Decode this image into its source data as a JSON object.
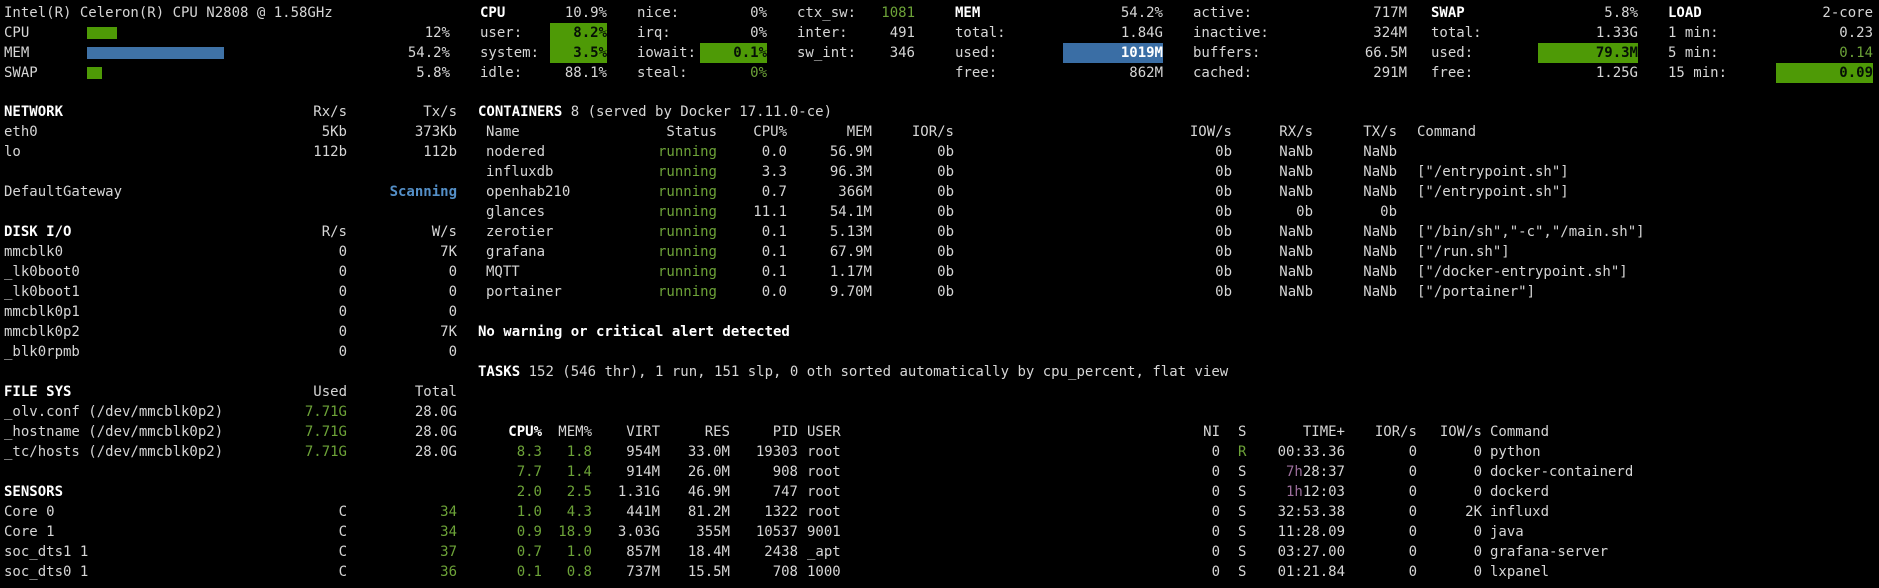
{
  "colors": {
    "background": "#000000",
    "text": "#d6d6d6",
    "title_white": "#ffffff",
    "green_fg": "#6da338",
    "green_bg": "#4e9a06",
    "blue_bg": "#3a6ea5",
    "blue_fg": "#548fc7",
    "magenta_fg": "#9d6f9d",
    "bar_green": "#4e9a06",
    "bar_blue": "#3f72a6"
  },
  "quicklook": {
    "title": "Intel(R) Celeron(R) CPU N2808 @ 1.58GHz",
    "gauges": [
      {
        "label": "CPU",
        "value": "12%",
        "percent": 12,
        "color": "green"
      },
      {
        "label": "MEM",
        "value": "54.2%",
        "percent": 54.2,
        "color": "blue"
      },
      {
        "label": "SWAP",
        "value": "5.8%",
        "percent": 5.8,
        "color": "green"
      }
    ]
  },
  "cpu_panel": {
    "col1": [
      {
        "label": "CPU",
        "value": "10.9%",
        "title": true
      },
      {
        "label": "user:",
        "value": "8.2%",
        "style": "bg-green"
      },
      {
        "label": "system:",
        "value": "3.5%",
        "style": "bg-green"
      },
      {
        "label": "idle:",
        "value": "88.1%"
      }
    ],
    "col2": [
      {
        "label": "nice:",
        "value": "0%"
      },
      {
        "label": "irq:",
        "value": "0%"
      },
      {
        "label": "iowait:",
        "value": "0.1%",
        "style": "bg-green"
      },
      {
        "label": "steal:",
        "value": "0%",
        "style": "fg-green"
      }
    ],
    "col3": [
      {
        "label": "ctx_sw:",
        "value": "1081",
        "style": "fg-green"
      },
      {
        "label": "inter:",
        "value": "491"
      },
      {
        "label": "sw_int:",
        "value": "346"
      }
    ]
  },
  "mem_panel": {
    "col1": [
      {
        "label": "MEM",
        "value": "54.2%",
        "title": true
      },
      {
        "label": "total:",
        "value": "1.84G"
      },
      {
        "label": "used:",
        "value": "1019M",
        "style": "bg-blue"
      },
      {
        "label": "free:",
        "value": "862M"
      }
    ],
    "col2": [
      {
        "label": "active:",
        "value": "717M"
      },
      {
        "label": "inactive:",
        "value": "324M"
      },
      {
        "label": "buffers:",
        "value": "66.5M"
      },
      {
        "label": "cached:",
        "value": "291M"
      }
    ]
  },
  "swap_panel": {
    "col1": [
      {
        "label": "SWAP",
        "value": "5.8%",
        "title": true
      },
      {
        "label": "total:",
        "value": "1.33G"
      },
      {
        "label": "used:",
        "value": "79.3M",
        "style": "bg-green"
      },
      {
        "label": "free:",
        "value": "1.25G"
      }
    ]
  },
  "load_panel": {
    "col1": [
      {
        "label": "LOAD",
        "value": "2-core",
        "title": true
      },
      {
        "label": "1 min:",
        "value": "0.23"
      },
      {
        "label": "5 min:",
        "value": "0.14",
        "style": "fg-green"
      },
      {
        "label": "15 min:",
        "value": "0.09",
        "style": "bg-green"
      }
    ]
  },
  "network": {
    "title": "NETWORK",
    "headers": [
      "Rx/s",
      "Tx/s"
    ],
    "rows": [
      [
        "eth0",
        "5Kb",
        "373Kb"
      ],
      [
        "lo",
        "112b",
        "112b"
      ]
    ]
  },
  "gateway": {
    "label": "DefaultGateway",
    "status": "Scanning"
  },
  "diskio": {
    "title": "DISK I/O",
    "headers": [
      "R/s",
      "W/s"
    ],
    "rows": [
      [
        "mmcblk0",
        "0",
        "7K"
      ],
      [
        "_lk0boot0",
        "0",
        "0"
      ],
      [
        "_lk0boot1",
        "0",
        "0"
      ],
      [
        "mmcblk0p1",
        "0",
        "0"
      ],
      [
        "mmcblk0p2",
        "0",
        "7K"
      ],
      [
        "_blk0rpmb",
        "0",
        "0"
      ]
    ]
  },
  "filesys": {
    "title": "FILE SYS",
    "headers": [
      "Used",
      "Total"
    ],
    "rows": [
      [
        "_olv.conf (/dev/mmcblk0p2)",
        "7.71G",
        "28.0G"
      ],
      [
        "_hostname (/dev/mmcblk0p2)",
        "7.71G",
        "28.0G"
      ],
      [
        "_tc/hosts (/dev/mmcblk0p2)",
        "7.71G",
        "28.0G"
      ]
    ]
  },
  "sensors": {
    "title": "SENSORS",
    "rows": [
      [
        "Core 0",
        "C",
        "34"
      ],
      [
        "Core 1",
        "C",
        "34"
      ],
      [
        "soc_dts1 1",
        "C",
        "37"
      ],
      [
        "soc_dts0 1",
        "C",
        "36"
      ]
    ]
  },
  "containers": {
    "title": "CONTAINERS",
    "subtitle": "8 (served by Docker 17.11.0-ce)",
    "headers": [
      "Name",
      "Status",
      "CPU%",
      "MEM",
      "IOR/s",
      "IOW/s",
      "RX/s",
      "TX/s",
      "Command"
    ],
    "rows": [
      {
        "name": "nodered",
        "status": "running",
        "cpu": "0.0",
        "mem": "56.9M",
        "ior": "0b",
        "iow": "0b",
        "rx": "NaNb",
        "tx": "NaNb",
        "cmd": ""
      },
      {
        "name": "influxdb",
        "status": "running",
        "cpu": "3.3",
        "mem": "96.3M",
        "ior": "0b",
        "iow": "0b",
        "rx": "NaNb",
        "tx": "NaNb",
        "cmd": "[\"/entrypoint.sh\"]"
      },
      {
        "name": "openhab210",
        "status": "running",
        "cpu": "0.7",
        "mem": "366M",
        "ior": "0b",
        "iow": "0b",
        "rx": "NaNb",
        "tx": "NaNb",
        "cmd": "[\"/entrypoint.sh\"]"
      },
      {
        "name": "glances",
        "status": "running",
        "cpu": "11.1",
        "mem": "54.1M",
        "ior": "0b",
        "iow": "0b",
        "rx": "0b",
        "tx": "0b",
        "cmd": ""
      },
      {
        "name": "zerotier",
        "status": "running",
        "cpu": "0.1",
        "mem": "5.13M",
        "ior": "0b",
        "iow": "0b",
        "rx": "NaNb",
        "tx": "NaNb",
        "cmd": "[\"/bin/sh\",\"-c\",\"/main.sh\"]"
      },
      {
        "name": "grafana",
        "status": "running",
        "cpu": "0.1",
        "mem": "67.9M",
        "ior": "0b",
        "iow": "0b",
        "rx": "NaNb",
        "tx": "NaNb",
        "cmd": "[\"/run.sh\"]"
      },
      {
        "name": "MQTT",
        "status": "running",
        "cpu": "0.1",
        "mem": "1.17M",
        "ior": "0b",
        "iow": "0b",
        "rx": "NaNb",
        "tx": "NaNb",
        "cmd": "[\"/docker-entrypoint.sh\"]"
      },
      {
        "name": "portainer",
        "status": "running",
        "cpu": "0.0",
        "mem": "9.70M",
        "ior": "0b",
        "iow": "0b",
        "rx": "NaNb",
        "tx": "NaNb",
        "cmd": "[\"/portainer\"]"
      }
    ]
  },
  "alert": {
    "text": "No warning or critical alert detected"
  },
  "tasks": {
    "title": "TASKS",
    "summary": "152 (546 thr), 1 run, 151 slp, 0 oth",
    "sort_info": "sorted automatically by cpu_percent, flat view",
    "headers": [
      "CPU%",
      "MEM%",
      "VIRT",
      "RES",
      "PID",
      "USER",
      "NI",
      "S",
      "TIME+",
      "IOR/s",
      "IOW/s",
      "Command"
    ],
    "rows": [
      {
        "cpu": "8.3",
        "mem": "1.8",
        "virt": "954M",
        "res": "33.0M",
        "pid": "19303",
        "user": "root",
        "ni": "0",
        "s": "R",
        "tprefix": "",
        "time": "00:33.36",
        "ior": "0",
        "iow": "0",
        "cmd": "python"
      },
      {
        "cpu": "7.7",
        "mem": "1.4",
        "virt": "914M",
        "res": "26.0M",
        "pid": "908",
        "user": "root",
        "ni": "0",
        "s": "S",
        "tprefix": "7h",
        "time": "28:37",
        "ior": "0",
        "iow": "0",
        "cmd": "docker-containerd"
      },
      {
        "cpu": "2.0",
        "mem": "2.5",
        "virt": "1.31G",
        "res": "46.9M",
        "pid": "747",
        "user": "root",
        "ni": "0",
        "s": "S",
        "tprefix": "1h",
        "time": "12:03",
        "ior": "0",
        "iow": "0",
        "cmd": "dockerd"
      },
      {
        "cpu": "1.0",
        "mem": "4.3",
        "virt": "441M",
        "res": "81.2M",
        "pid": "1322",
        "user": "root",
        "ni": "0",
        "s": "S",
        "tprefix": "",
        "time": "32:53.38",
        "ior": "0",
        "iow": "2K",
        "cmd": "influxd"
      },
      {
        "cpu": "0.9",
        "mem": "18.9",
        "virt": "3.03G",
        "res": "355M",
        "pid": "10537",
        "user": "9001",
        "ni": "0",
        "s": "S",
        "tprefix": "",
        "time": "11:28.09",
        "ior": "0",
        "iow": "0",
        "cmd": "java"
      },
      {
        "cpu": "0.7",
        "mem": "1.0",
        "virt": "857M",
        "res": "18.4M",
        "pid": "2438",
        "user": "_apt",
        "ni": "0",
        "s": "S",
        "tprefix": "",
        "time": "03:27.00",
        "ior": "0",
        "iow": "0",
        "cmd": "grafana-server"
      },
      {
        "cpu": "0.1",
        "mem": "0.8",
        "virt": "737M",
        "res": "15.5M",
        "pid": "708",
        "user": "1000",
        "ni": "0",
        "s": "S",
        "tprefix": "",
        "time": "01:21.84",
        "ior": "0",
        "iow": "0",
        "cmd": "lxpanel"
      }
    ]
  }
}
